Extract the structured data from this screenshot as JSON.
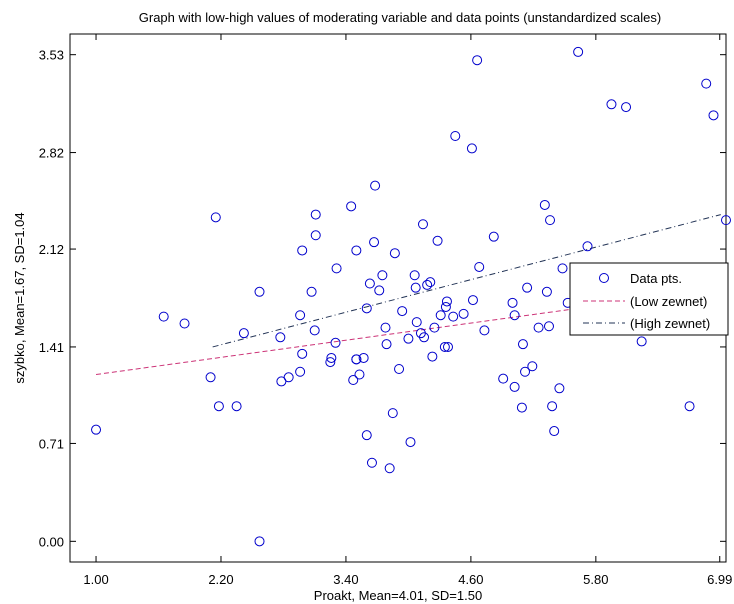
{
  "chart_data": {
    "type": "scatter",
    "title": "Graph with low-high values of moderating variable and data points (unstandardized scales)",
    "xlabel": "Proakt, Mean=4.01, SD=1.50",
    "ylabel": "szybko, Mean=1.67, SD=1.04",
    "xlim": [
      0.75,
      7.05
    ],
    "ylim": [
      -0.15,
      3.68
    ],
    "x_ticks": [
      "1.00",
      "2.20",
      "3.40",
      "4.60",
      "5.80",
      "6.99"
    ],
    "y_ticks": [
      "0.00",
      "0.71",
      "1.41",
      "2.12",
      "2.82",
      "3.53"
    ],
    "legend_position": "right",
    "series": [
      {
        "name": "Data pts.",
        "kind": "scatter",
        "color": "#0000cc",
        "points": [
          [
            1.0,
            0.81
          ],
          [
            1.65,
            1.63
          ],
          [
            1.85,
            1.58
          ],
          [
            2.1,
            1.19
          ],
          [
            2.15,
            2.35
          ],
          [
            2.18,
            0.98
          ],
          [
            2.35,
            0.98
          ],
          [
            2.42,
            1.51
          ],
          [
            2.57,
            1.81
          ],
          [
            2.57,
            0.0
          ],
          [
            2.77,
            1.48
          ],
          [
            2.78,
            1.16
          ],
          [
            2.85,
            1.19
          ],
          [
            2.96,
            1.64
          ],
          [
            2.96,
            1.23
          ],
          [
            2.98,
            1.36
          ],
          [
            2.98,
            2.11
          ],
          [
            3.07,
            1.81
          ],
          [
            3.1,
            1.53
          ],
          [
            3.11,
            2.22
          ],
          [
            3.11,
            2.37
          ],
          [
            3.25,
            1.3
          ],
          [
            3.26,
            1.33
          ],
          [
            3.3,
            1.44
          ],
          [
            3.31,
            1.98
          ],
          [
            3.45,
            2.43
          ],
          [
            3.47,
            1.17
          ],
          [
            3.5,
            1.32
          ],
          [
            3.5,
            2.11
          ],
          [
            3.5,
            1.32
          ],
          [
            3.53,
            1.21
          ],
          [
            3.57,
            1.33
          ],
          [
            3.6,
            0.77
          ],
          [
            3.6,
            1.69
          ],
          [
            3.65,
            0.57
          ],
          [
            3.63,
            1.87
          ],
          [
            3.67,
            2.17
          ],
          [
            3.68,
            2.58
          ],
          [
            3.72,
            1.82
          ],
          [
            3.75,
            1.93
          ],
          [
            3.79,
            1.43
          ],
          [
            3.78,
            1.55
          ],
          [
            3.82,
            0.53
          ],
          [
            3.85,
            0.93
          ],
          [
            3.87,
            2.09
          ],
          [
            3.91,
            1.25
          ],
          [
            3.94,
            1.67
          ],
          [
            4.0,
            1.47
          ],
          [
            4.02,
            0.72
          ],
          [
            4.06,
            1.93
          ],
          [
            4.08,
            1.59
          ],
          [
            4.07,
            1.84
          ],
          [
            4.12,
            1.51
          ],
          [
            4.15,
            1.48
          ],
          [
            4.14,
            2.3
          ],
          [
            4.18,
            1.86
          ],
          [
            4.21,
            1.88
          ],
          [
            4.23,
            1.34
          ],
          [
            4.25,
            1.55
          ],
          [
            4.28,
            2.18
          ],
          [
            4.31,
            1.64
          ],
          [
            4.35,
            1.41
          ],
          [
            4.37,
            1.74
          ],
          [
            4.36,
            1.7
          ],
          [
            4.38,
            1.41
          ],
          [
            4.43,
            1.63
          ],
          [
            4.45,
            2.94
          ],
          [
            4.53,
            1.65
          ],
          [
            4.61,
            2.85
          ],
          [
            4.62,
            1.75
          ],
          [
            4.66,
            3.49
          ],
          [
            4.68,
            1.99
          ],
          [
            4.73,
            1.53
          ],
          [
            4.82,
            2.21
          ],
          [
            4.91,
            1.18
          ],
          [
            5.0,
            1.73
          ],
          [
            5.02,
            1.12
          ],
          [
            5.02,
            1.64
          ],
          [
            5.09,
            0.97
          ],
          [
            5.1,
            1.43
          ],
          [
            5.12,
            1.23
          ],
          [
            5.14,
            1.84
          ],
          [
            5.19,
            1.27
          ],
          [
            5.25,
            1.55
          ],
          [
            5.31,
            2.44
          ],
          [
            5.33,
            1.81
          ],
          [
            5.36,
            2.33
          ],
          [
            5.35,
            1.56
          ],
          [
            5.38,
            0.98
          ],
          [
            5.4,
            0.8
          ],
          [
            5.45,
            1.11
          ],
          [
            5.48,
            1.98
          ],
          [
            5.53,
            1.73
          ],
          [
            5.63,
            3.55
          ],
          [
            5.67,
            1.88
          ],
          [
            5.72,
            2.14
          ],
          [
            5.73,
            1.79
          ],
          [
            5.95,
            3.17
          ],
          [
            5.98,
            1.59
          ],
          [
            6.09,
            3.15
          ],
          [
            6.24,
            1.45
          ],
          [
            6.7,
            0.98
          ],
          [
            6.86,
            3.32
          ],
          [
            6.93,
            3.09
          ],
          [
            7.05,
            2.33
          ]
        ]
      },
      {
        "name": "(Low zewnet)",
        "kind": "line",
        "color": "#cc3377",
        "dash": "dashed",
        "points": [
          [
            1.0,
            1.21
          ],
          [
            6.5,
            1.78
          ]
        ]
      },
      {
        "name": "(High zewnet)",
        "kind": "line",
        "color": "#223355",
        "dash": "dashdot",
        "points": [
          [
            2.12,
            1.41
          ],
          [
            7.0,
            2.37
          ]
        ]
      }
    ]
  }
}
